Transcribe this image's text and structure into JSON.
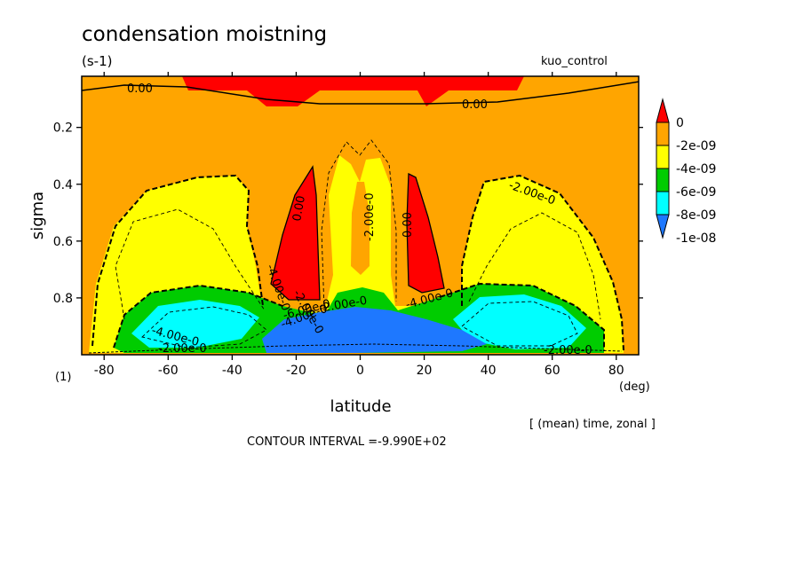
{
  "chart_data": {
    "type": "contour",
    "title": "condensation moistning",
    "units": "(s-1)",
    "experiment": "kuo_control",
    "xlabel": "latitude",
    "xunits": "(deg)",
    "ylabel": "sigma",
    "yunits_note": "(1)",
    "xlim": [
      -87,
      87
    ],
    "ylim": [
      1.0,
      0.02
    ],
    "x_ticks": [
      "-80",
      "-60",
      "-40",
      "-20",
      "0",
      "20",
      "40",
      "60",
      "80"
    ],
    "y_ticks": [
      "0.2",
      "0.4",
      "0.6",
      "0.8"
    ],
    "averaging_note": "[ (mean) time, zonal ]",
    "contour_interval": "CONTOUR INTERVAL =-9.990E+02",
    "legend": {
      "levels": [
        "0",
        "-2e-09",
        "-4e-09",
        "-6e-09",
        "-8e-09",
        "-1e-08"
      ],
      "colors": [
        "#ff0000",
        "#ffa500",
        "#ffff00",
        "#00cc00",
        "#00ffff",
        "#1e78ff"
      ]
    },
    "contour_labels": [
      "0.00",
      "0.00",
      "0.00",
      "0.00",
      "-2.00e-0",
      "-2.00e-0",
      "-4.00e-0",
      "-4.00e-0",
      "-2.00e-0",
      "-2.00e-0",
      "-4.00e-0",
      "-2.00e-0",
      "-4.00e-0",
      "-6.00e-0",
      "-2.00e-0"
    ]
  }
}
